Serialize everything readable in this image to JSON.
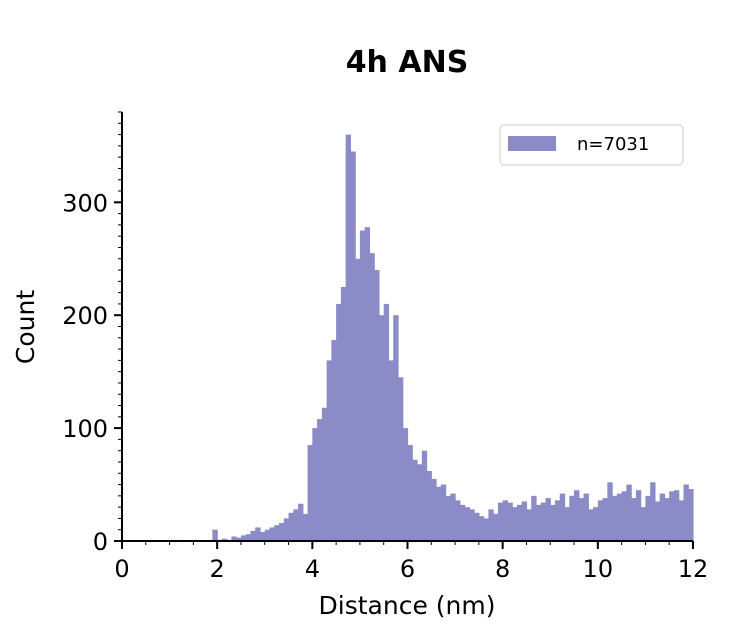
{
  "chart_data": {
    "type": "bar",
    "title": "4h ANS",
    "xlabel": "Distance (nm)",
    "ylabel": "Count",
    "xlim": [
      0,
      12
    ],
    "ylim": [
      0,
      380
    ],
    "xticks": [
      0,
      2,
      4,
      6,
      8,
      10,
      12
    ],
    "yticks": [
      0,
      100,
      200,
      300
    ],
    "grid": false,
    "legend_position": "top-right",
    "bar_color": "#8b8bc8",
    "bin_width": 0.1,
    "series": [
      {
        "name": "n=7031",
        "x_start": [
          0.0,
          0.1,
          0.2,
          0.3,
          0.4,
          0.5,
          0.6,
          0.7,
          0.8,
          0.9,
          1.0,
          1.1,
          1.2,
          1.3,
          1.4,
          1.5,
          1.6,
          1.7,
          1.8,
          1.9,
          2.0,
          2.1,
          2.2,
          2.3,
          2.4,
          2.5,
          2.6,
          2.7,
          2.8,
          2.9,
          3.0,
          3.1,
          3.2,
          3.3,
          3.4,
          3.5,
          3.6,
          3.7,
          3.8,
          3.9,
          4.0,
          4.1,
          4.2,
          4.3,
          4.4,
          4.5,
          4.6,
          4.7,
          4.8,
          4.9,
          5.0,
          5.1,
          5.2,
          5.3,
          5.4,
          5.5,
          5.6,
          5.7,
          5.8,
          5.9,
          6.0,
          6.1,
          6.2,
          6.3,
          6.4,
          6.5,
          6.6,
          6.7,
          6.8,
          6.9,
          7.0,
          7.1,
          7.2,
          7.3,
          7.4,
          7.5,
          7.6,
          7.7,
          7.8,
          7.9,
          8.0,
          8.1,
          8.2,
          8.3,
          8.4,
          8.5,
          8.6,
          8.7,
          8.8,
          8.9,
          9.0,
          9.1,
          9.2,
          9.3,
          9.4,
          9.5,
          9.6,
          9.7,
          9.8,
          9.9,
          10.0,
          10.1,
          10.2,
          10.3,
          10.4,
          10.5,
          10.6,
          10.7,
          10.8,
          10.9,
          11.0,
          11.1,
          11.2,
          11.3,
          11.4,
          11.5,
          11.6,
          11.7,
          11.8,
          11.9
        ],
        "values": [
          0,
          0,
          0,
          0,
          0,
          0,
          0,
          0,
          0,
          0,
          1,
          0,
          1,
          0,
          0,
          1,
          0,
          0,
          1,
          10,
          1,
          2,
          1,
          4,
          3,
          5,
          6,
          9,
          12,
          8,
          10,
          12,
          14,
          16,
          20,
          25,
          28,
          33,
          24,
          85,
          100,
          108,
          118,
          160,
          178,
          210,
          225,
          360,
          345,
          250,
          275,
          278,
          255,
          240,
          200,
          210,
          160,
          200,
          145,
          100,
          85,
          72,
          68,
          80,
          62,
          55,
          48,
          50,
          40,
          42,
          36,
          32,
          30,
          28,
          25,
          22,
          20,
          28,
          24,
          34,
          36,
          34,
          30,
          32,
          35,
          28,
          40,
          32,
          34,
          38,
          32,
          36,
          42,
          30,
          40,
          45,
          38,
          42,
          28,
          30,
          36,
          38,
          52,
          40,
          42,
          44,
          50,
          38,
          45,
          30,
          40,
          52,
          35,
          42,
          38,
          44,
          45,
          36,
          50,
          46
        ]
      }
    ]
  }
}
